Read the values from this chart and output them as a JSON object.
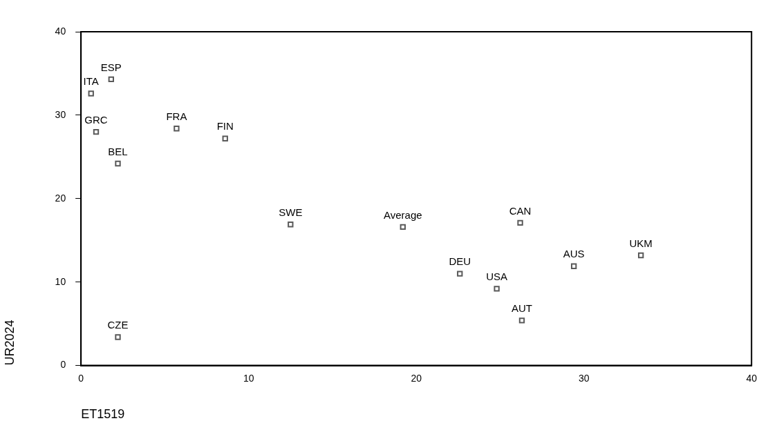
{
  "chart_data": {
    "type": "scatter",
    "xlabel": "ET1519",
    "ylabel": "UR2024",
    "x": [
      0.6,
      1.8,
      0.9,
      2.2,
      2.2,
      5.7,
      8.6,
      12.5,
      19.2,
      22.6,
      24.8,
      26.2,
      26.3,
      29.4,
      33.4
    ],
    "series": [
      {
        "color": "#595959",
        "values": [
          32.6,
          34.3,
          28.0,
          24.2,
          3.4,
          28.4,
          27.2,
          16.9,
          16.6,
          11.0,
          9.2,
          17.1,
          5.4,
          11.9,
          13.2
        ]
      }
    ],
    "xlim": [
      0,
      40
    ],
    "xticks": [
      0,
      10,
      20,
      30,
      40
    ],
    "ylim": [
      0,
      40
    ],
    "yticks": [
      0,
      10,
      20,
      30,
      40
    ],
    "grid": false,
    "legend": false,
    "marker": "square",
    "annotations": [
      {
        "text": "ITA",
        "x": 0.6,
        "y": 32.6
      },
      {
        "text": "ESP",
        "x": 1.8,
        "y": 34.3
      },
      {
        "text": "GRC",
        "x": 0.9,
        "y": 28.0
      },
      {
        "text": "BEL",
        "x": 2.2,
        "y": 24.2
      },
      {
        "text": "CZE",
        "x": 2.2,
        "y": 3.4
      },
      {
        "text": "FRA",
        "x": 5.7,
        "y": 28.4
      },
      {
        "text": "FIN",
        "x": 8.6,
        "y": 27.2
      },
      {
        "text": "SWE",
        "x": 12.5,
        "y": 16.9
      },
      {
        "text": "Average",
        "x": 19.2,
        "y": 16.6
      },
      {
        "text": "DEU",
        "x": 22.6,
        "y": 11.0
      },
      {
        "text": "USA",
        "x": 24.8,
        "y": 9.2
      },
      {
        "text": "CAN",
        "x": 26.2,
        "y": 17.1
      },
      {
        "text": "AUT",
        "x": 26.3,
        "y": 5.4
      },
      {
        "text": "AUS",
        "x": 29.4,
        "y": 11.9
      },
      {
        "text": "UKM",
        "x": 33.4,
        "y": 13.2
      }
    ]
  }
}
